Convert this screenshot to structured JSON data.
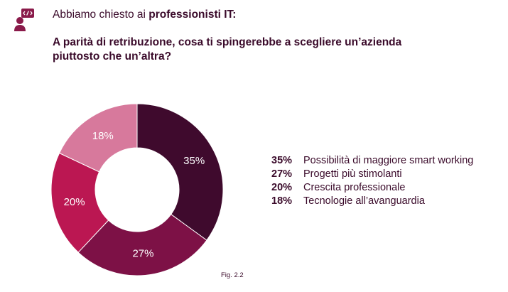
{
  "header": {
    "intro_prefix": "Abbiamo chiesto ai ",
    "intro_bold": "professionisti IT:",
    "question": "A parità di retribuzione, cosa ti spingerebbe a scegliere un’azienda piuttosto che un’altra?",
    "icon": "developer-person-icon"
  },
  "chart_data": {
    "type": "pie",
    "style": "donut",
    "categories": [
      "Possibilità di maggiore smart working",
      "Progetti più stimolanti",
      "Crescita professionale",
      "Tecnologie all’avanguardia"
    ],
    "values": [
      35,
      27,
      20,
      18
    ],
    "labels": [
      "35%",
      "27%",
      "20%",
      "18%"
    ],
    "colors": [
      "#3f0a2d",
      "#7d1146",
      "#bb1752",
      "#d7799c"
    ],
    "legend_placement": "right"
  },
  "caption": "Fig. 2.2"
}
